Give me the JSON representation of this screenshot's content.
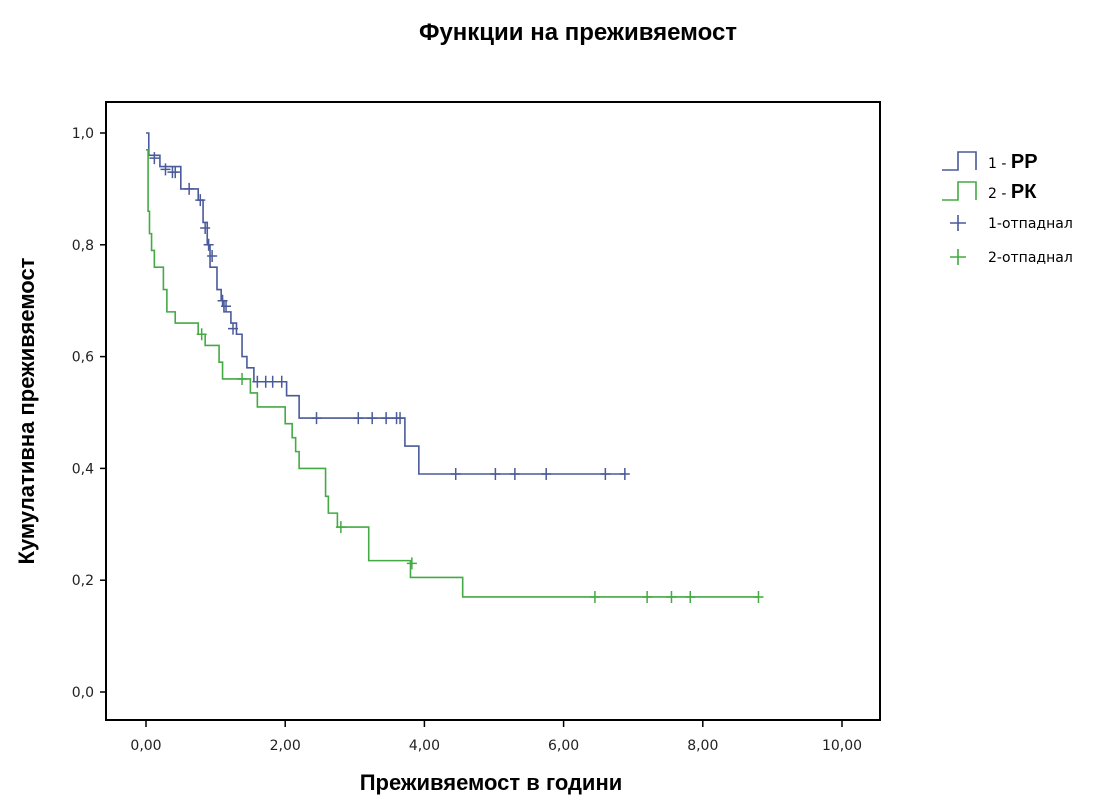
{
  "chart_data": {
    "type": "line",
    "title": "Функции на преживяемост",
    "xlabel": "Преживяемост в години",
    "ylabel": "Кумулативна преживяемост",
    "xlim": [
      0,
      10
    ],
    "ylim": [
      0,
      1
    ],
    "x_ticks": [
      "0,00",
      "2,00",
      "4,00",
      "6,00",
      "8,00",
      "10,00"
    ],
    "y_ticks": [
      "0,0",
      "0,2",
      "0,4",
      "0,6",
      "0,8",
      "1,0"
    ],
    "grid": false,
    "legend_position": "right",
    "legend": [
      {
        "prefix": "1 - ",
        "label": "РР",
        "kind": "step"
      },
      {
        "prefix": "2 - ",
        "label": "РК",
        "kind": "step"
      },
      {
        "label": "1-отпаднал",
        "kind": "censor"
      },
      {
        "label": "2-отпаднал",
        "kind": "censor"
      }
    ],
    "series": [
      {
        "name": "РР",
        "color": "#4a5a9a",
        "steps": [
          [
            0,
            1.0
          ],
          [
            0.04,
            0.96
          ],
          [
            0.2,
            0.94
          ],
          [
            0.5,
            0.92
          ],
          [
            0.5,
            0.9
          ],
          [
            0.75,
            0.88
          ],
          [
            0.82,
            0.84
          ],
          [
            0.88,
            0.8
          ],
          [
            0.92,
            0.76
          ],
          [
            1.02,
            0.72
          ],
          [
            1.08,
            0.7
          ],
          [
            1.12,
            0.68
          ],
          [
            1.22,
            0.66
          ],
          [
            1.3,
            0.64
          ],
          [
            1.38,
            0.6
          ],
          [
            1.45,
            0.58
          ],
          [
            1.55,
            0.555
          ],
          [
            2.02,
            0.53
          ],
          [
            2.2,
            0.49
          ],
          [
            3.72,
            0.44
          ],
          [
            3.92,
            0.39
          ],
          [
            6.9,
            0.39
          ]
        ],
        "censored": [
          [
            0.12,
            0.955
          ],
          [
            0.28,
            0.935
          ],
          [
            0.38,
            0.93
          ],
          [
            0.42,
            0.93
          ],
          [
            0.62,
            0.9
          ],
          [
            0.78,
            0.88
          ],
          [
            0.85,
            0.83
          ],
          [
            0.9,
            0.8
          ],
          [
            0.95,
            0.78
          ],
          [
            1.1,
            0.7
          ],
          [
            1.15,
            0.69
          ],
          [
            1.25,
            0.65
          ],
          [
            1.6,
            0.555
          ],
          [
            1.72,
            0.555
          ],
          [
            1.82,
            0.555
          ],
          [
            1.95,
            0.555
          ],
          [
            2.45,
            0.49
          ],
          [
            3.05,
            0.49
          ],
          [
            3.25,
            0.49
          ],
          [
            3.45,
            0.49
          ],
          [
            3.6,
            0.49
          ],
          [
            3.65,
            0.49
          ],
          [
            4.45,
            0.39
          ],
          [
            5.02,
            0.39
          ],
          [
            5.3,
            0.39
          ],
          [
            5.75,
            0.39
          ],
          [
            6.6,
            0.39
          ],
          [
            6.88,
            0.39
          ]
        ]
      },
      {
        "name": "РК",
        "color": "#44aa44",
        "steps": [
          [
            0,
            0.97
          ],
          [
            0.03,
            0.86
          ],
          [
            0.05,
            0.82
          ],
          [
            0.08,
            0.79
          ],
          [
            0.12,
            0.76
          ],
          [
            0.25,
            0.72
          ],
          [
            0.3,
            0.68
          ],
          [
            0.42,
            0.66
          ],
          [
            0.75,
            0.64
          ],
          [
            0.85,
            0.62
          ],
          [
            1.05,
            0.59
          ],
          [
            1.1,
            0.56
          ],
          [
            1.5,
            0.535
          ],
          [
            1.6,
            0.51
          ],
          [
            2.0,
            0.48
          ],
          [
            2.1,
            0.455
          ],
          [
            2.15,
            0.43
          ],
          [
            2.2,
            0.4
          ],
          [
            2.58,
            0.35
          ],
          [
            2.62,
            0.32
          ],
          [
            2.75,
            0.295
          ],
          [
            3.2,
            0.235
          ],
          [
            3.8,
            0.205
          ],
          [
            4.55,
            0.17
          ],
          [
            8.8,
            0.17
          ]
        ],
        "censored": [
          [
            0.8,
            0.64
          ],
          [
            1.38,
            0.56
          ],
          [
            2.8,
            0.295
          ],
          [
            3.82,
            0.23
          ],
          [
            6.45,
            0.17
          ],
          [
            7.2,
            0.17
          ],
          [
            7.55,
            0.17
          ],
          [
            7.82,
            0.17
          ],
          [
            8.8,
            0.17
          ]
        ]
      }
    ]
  }
}
